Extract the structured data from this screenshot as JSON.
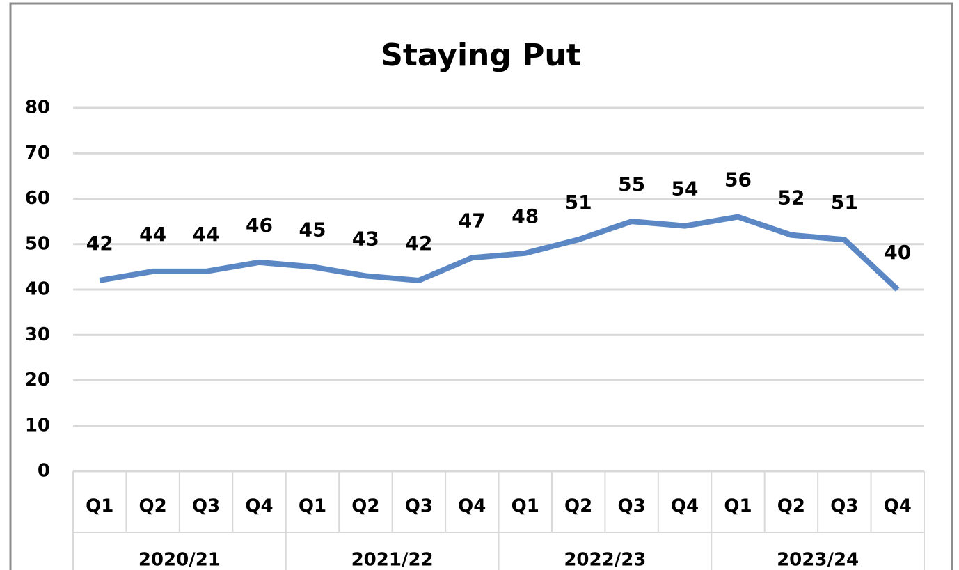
{
  "chart_data": {
    "type": "line",
    "title": "Staying Put",
    "categories": [
      "Q1",
      "Q2",
      "Q3",
      "Q4",
      "Q1",
      "Q2",
      "Q3",
      "Q4",
      "Q1",
      "Q2",
      "Q3",
      "Q4",
      "Q1",
      "Q2",
      "Q3",
      "Q4"
    ],
    "category_groups": [
      "2020/21",
      "2021/22",
      "2022/23",
      "2023/24"
    ],
    "series": [
      {
        "name": "Staying Put",
        "color": "#5b87c5",
        "values": [
          42,
          44,
          44,
          46,
          45,
          43,
          42,
          47,
          48,
          51,
          55,
          54,
          56,
          52,
          51,
          40
        ]
      }
    ],
    "ylim": [
      0,
      80
    ],
    "yticks": [
      0,
      10,
      20,
      30,
      40,
      50,
      60,
      70,
      80
    ],
    "grid": true,
    "data_labels": true
  }
}
